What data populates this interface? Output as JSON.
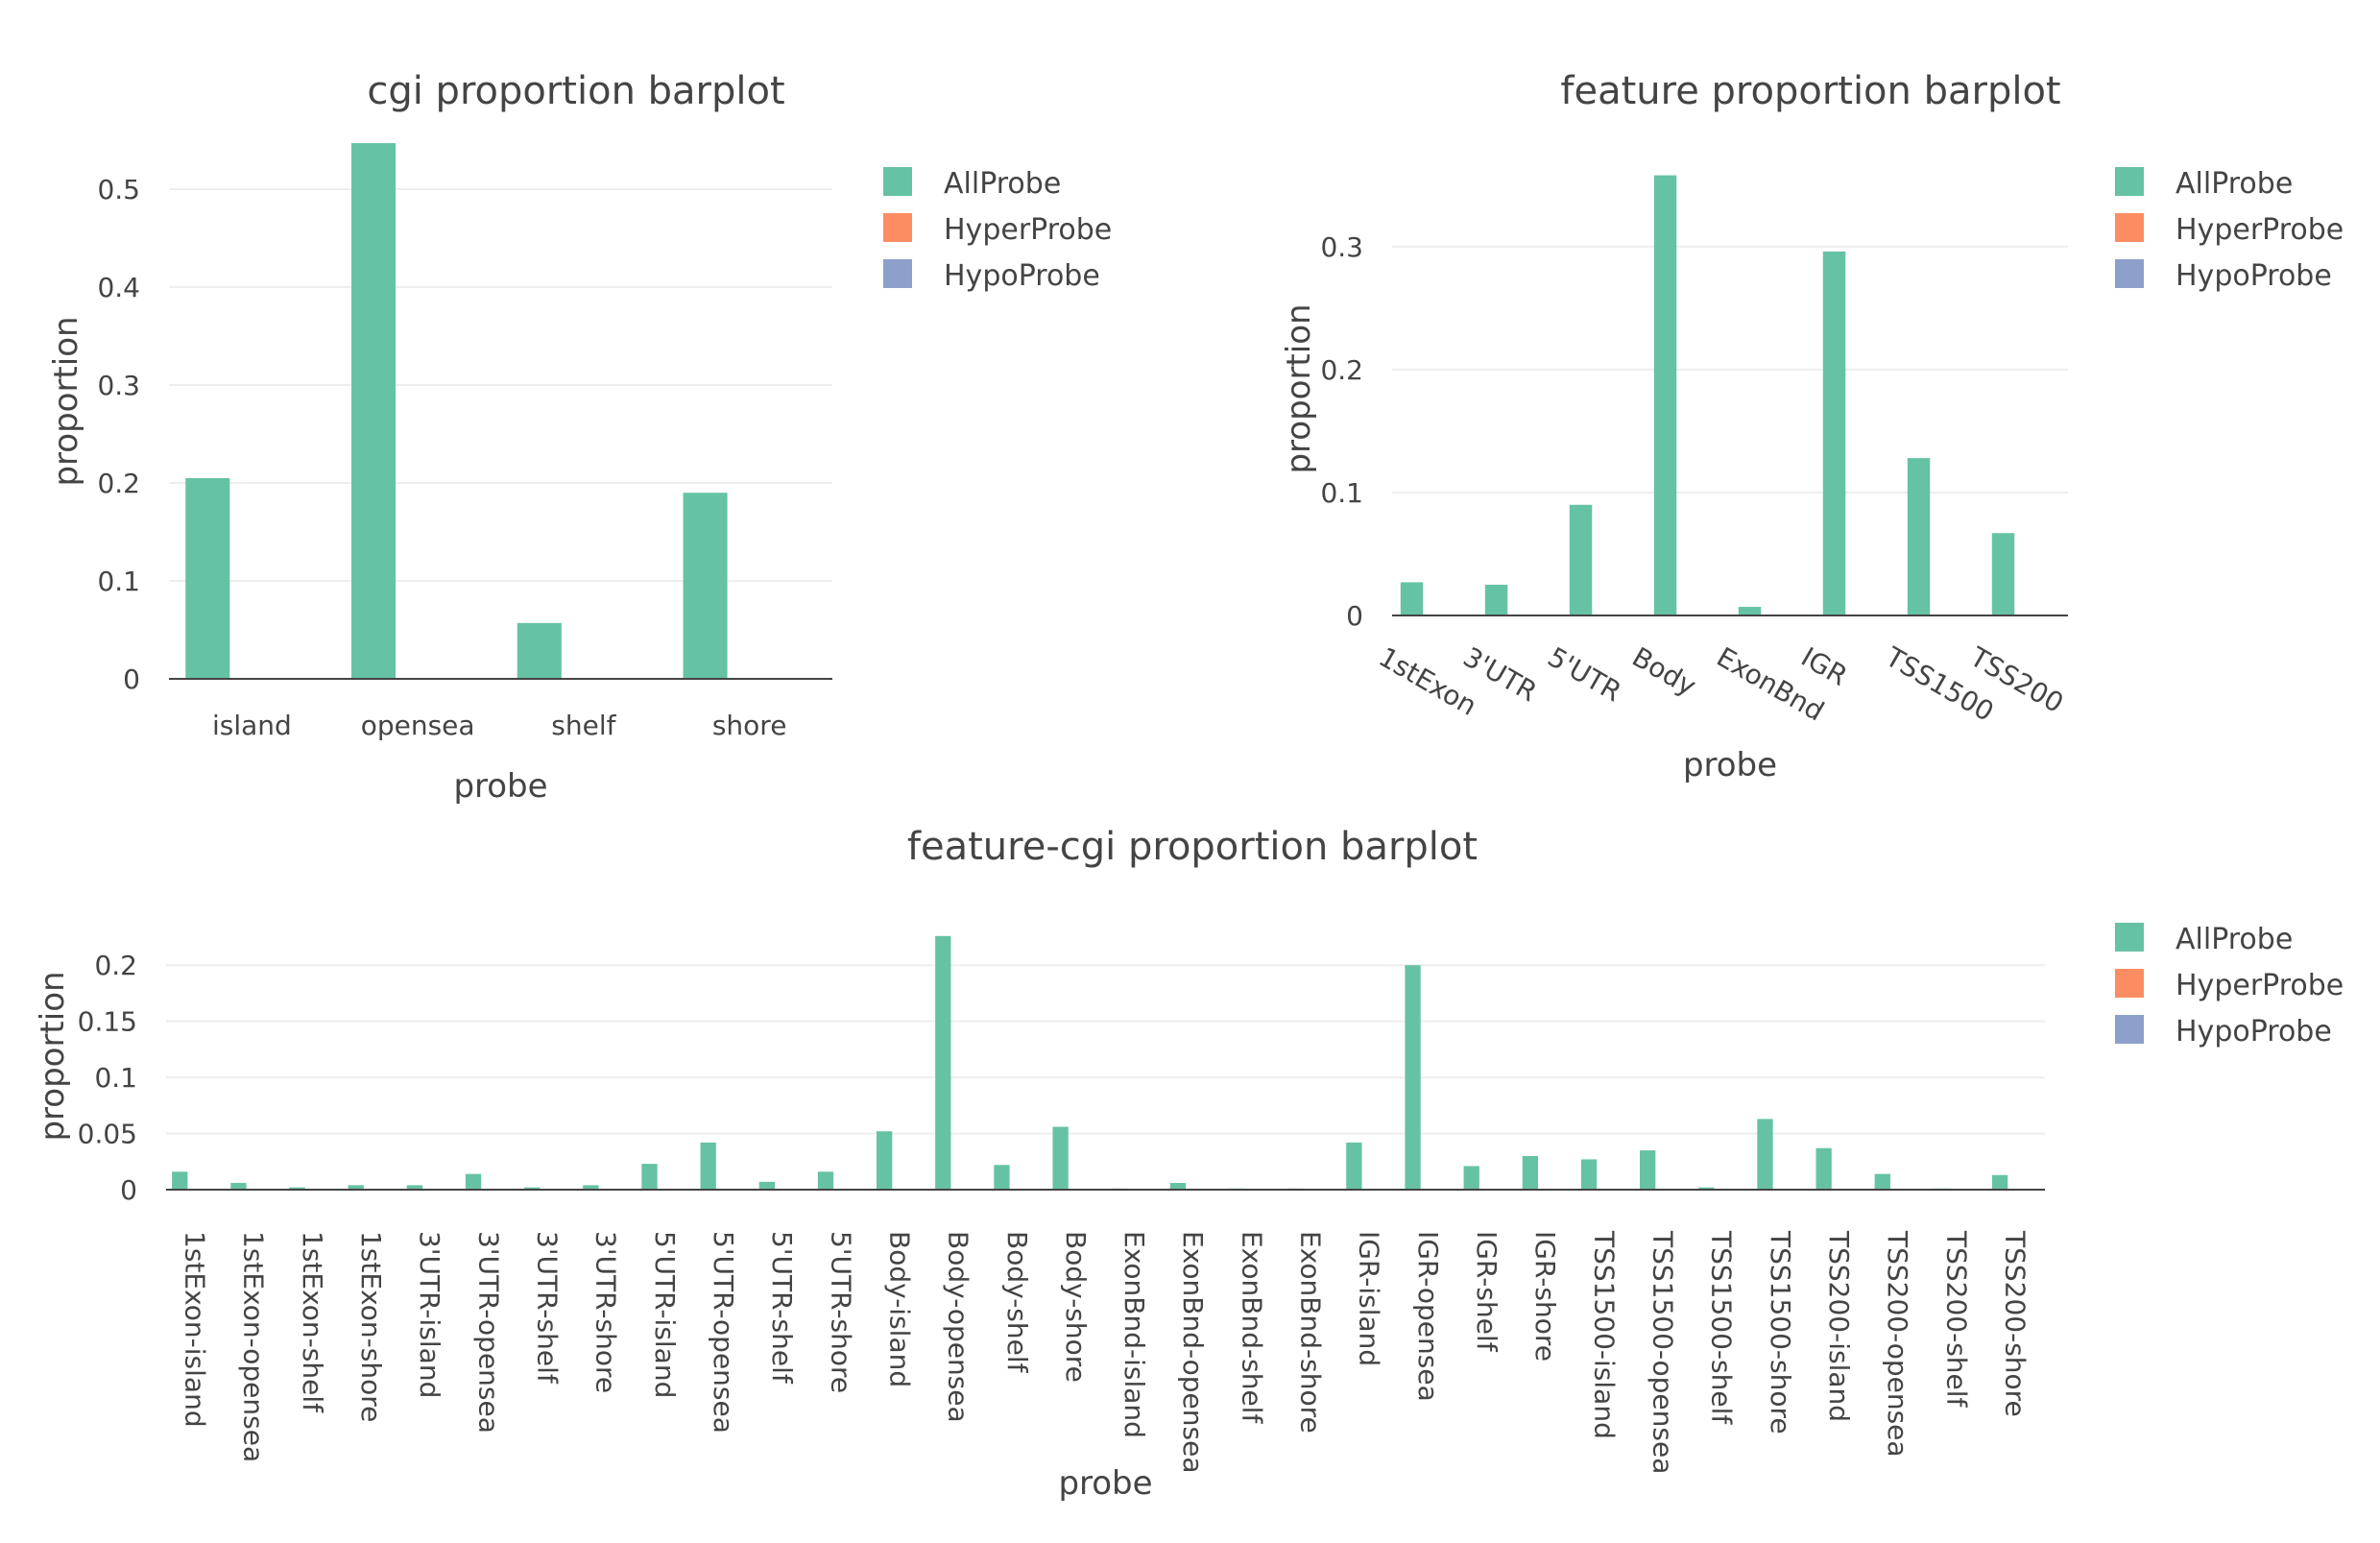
{
  "colors": {
    "AllProbe": "#66c2a5",
    "HyperProbe": "#fc8d62",
    "HypoProbe": "#8da0cb",
    "grid": "#eeeeee",
    "axis": "#444444",
    "text": "#444444"
  },
  "chart_data": [
    {
      "type": "bar",
      "title": "cgi proportion barplot",
      "xlabel": "probe",
      "ylabel": "proportion",
      "ylim": [
        0,
        0.55
      ],
      "yticks": [
        0,
        0.1,
        0.2,
        0.3,
        0.4,
        0.5
      ],
      "yticklabels": [
        "0",
        "0.1",
        "0.2",
        "0.3",
        "0.4",
        "0.5"
      ],
      "tick_angle": 0,
      "grid": true,
      "legend_position": "right",
      "categories": [
        "island",
        "opensea",
        "shelf",
        "shore"
      ],
      "series": [
        {
          "name": "AllProbe",
          "values": [
            0.205,
            0.547,
            0.057,
            0.19
          ]
        },
        {
          "name": "HyperProbe",
          "values": [
            0,
            0,
            0,
            0
          ]
        },
        {
          "name": "HypoProbe",
          "values": [
            0,
            0,
            0,
            0
          ]
        }
      ]
    },
    {
      "type": "bar",
      "title": "feature proportion barplot",
      "xlabel": "probe",
      "ylabel": "proportion",
      "ylim": [
        0,
        0.36
      ],
      "yticks": [
        0,
        0.1,
        0.2,
        0.3
      ],
      "yticklabels": [
        "0",
        "0.1",
        "0.2",
        "0.3"
      ],
      "tick_angle": 30,
      "grid": true,
      "legend_position": "right",
      "categories": [
        "1stExon",
        "3'UTR",
        "5'UTR",
        "Body",
        "ExonBnd",
        "IGR",
        "TSS1500",
        "TSS200"
      ],
      "series": [
        {
          "name": "AllProbe",
          "values": [
            0.027,
            0.025,
            0.09,
            0.358,
            0.007,
            0.296,
            0.128,
            0.067
          ]
        },
        {
          "name": "HyperProbe",
          "values": [
            0,
            0,
            0,
            0,
            0,
            0,
            0,
            0
          ]
        },
        {
          "name": "HypoProbe",
          "values": [
            0,
            0,
            0,
            0,
            0,
            0,
            0,
            0
          ]
        }
      ]
    },
    {
      "type": "bar",
      "title": "feature-cgi proportion barplot",
      "xlabel": "probe",
      "ylabel": "proportion",
      "ylim": [
        0,
        0.225
      ],
      "yticks": [
        0,
        0.05,
        0.1,
        0.15,
        0.2
      ],
      "yticklabels": [
        "0",
        "0.05",
        "0.1",
        "0.15",
        "0.2"
      ],
      "tick_angle": 90,
      "grid": true,
      "legend_position": "right",
      "categories": [
        "1stExon-island",
        "1stExon-opensea",
        "1stExon-shelf",
        "1stExon-shore",
        "3'UTR-island",
        "3'UTR-opensea",
        "3'UTR-shelf",
        "3'UTR-shore",
        "5'UTR-island",
        "5'UTR-opensea",
        "5'UTR-shelf",
        "5'UTR-shore",
        "Body-island",
        "Body-opensea",
        "Body-shelf",
        "Body-shore",
        "ExonBnd-island",
        "ExonBnd-opensea",
        "ExonBnd-shelf",
        "ExonBnd-shore",
        "IGR-island",
        "IGR-opensea",
        "IGR-shelf",
        "IGR-shore",
        "TSS1500-island",
        "TSS1500-opensea",
        "TSS1500-shelf",
        "TSS1500-shore",
        "TSS200-island",
        "TSS200-opensea",
        "TSS200-shelf",
        "TSS200-shore"
      ],
      "series": [
        {
          "name": "AllProbe",
          "values": [
            0.016,
            0.006,
            0.002,
            0.004,
            0.004,
            0.014,
            0.002,
            0.004,
            0.023,
            0.042,
            0.007,
            0.016,
            0.052,
            0.226,
            0.022,
            0.056,
            0.001,
            0.006,
            0.001,
            0.001,
            0.042,
            0.2,
            0.021,
            0.03,
            0.027,
            0.035,
            0.002,
            0.063,
            0.037,
            0.014,
            0.001,
            0.013
          ]
        },
        {
          "name": "HyperProbe",
          "values": [
            0,
            0,
            0,
            0,
            0,
            0,
            0,
            0,
            0,
            0,
            0,
            0,
            0,
            0,
            0,
            0,
            0,
            0,
            0,
            0,
            0,
            0,
            0,
            0,
            0,
            0,
            0,
            0,
            0,
            0,
            0,
            0
          ]
        },
        {
          "name": "HypoProbe",
          "values": [
            0,
            0,
            0,
            0,
            0,
            0,
            0,
            0,
            0,
            0,
            0,
            0,
            0,
            0,
            0,
            0,
            0,
            0,
            0,
            0,
            0,
            0,
            0,
            0,
            0,
            0,
            0,
            0,
            0,
            0,
            0,
            0
          ]
        }
      ]
    }
  ]
}
